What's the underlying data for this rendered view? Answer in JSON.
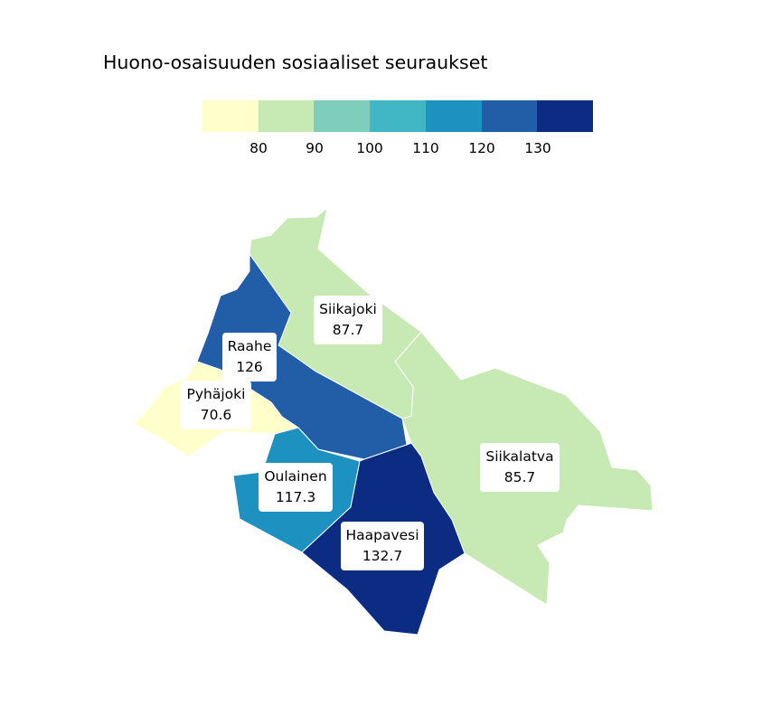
{
  "title": "Huono-osaisuuden sosiaaliset seuraukset",
  "legend": {
    "colors": [
      "#ffffcc",
      "#c7e9b4",
      "#7fcdbb",
      "#41b6c4",
      "#1d91c0",
      "#225ea8",
      "#0c2c84"
    ],
    "ticks": [
      "80",
      "90",
      "100",
      "110",
      "120",
      "130"
    ]
  },
  "regions": [
    {
      "name": "Siikajoki",
      "value": "87.7",
      "color": "#c7e9b4"
    },
    {
      "name": "Siikalatva",
      "value": "85.7",
      "color": "#c7e9b4"
    },
    {
      "name": "Raahe",
      "value": "126",
      "color": "#225ea8"
    },
    {
      "name": "Pyhäjoki",
      "value": "70.6",
      "color": "#ffffcc"
    },
    {
      "name": "Oulainen",
      "value": "117.3",
      "color": "#1d91c0"
    },
    {
      "name": "Haapavesi",
      "value": "132.7",
      "color": "#0c2c84"
    }
  ]
}
